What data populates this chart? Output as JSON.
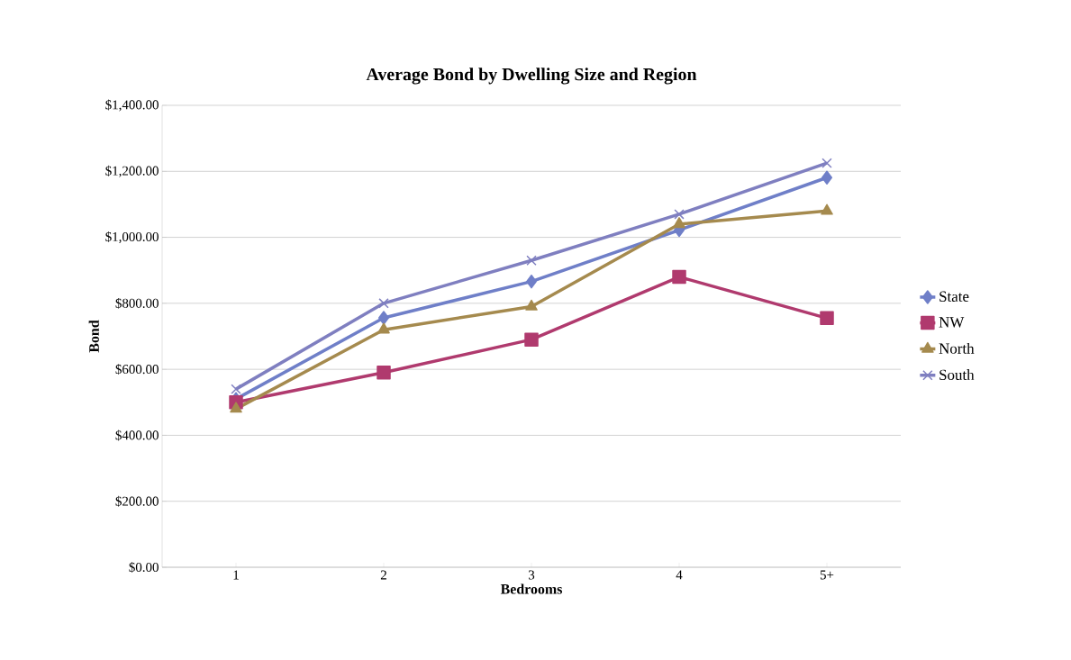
{
  "chart_data": {
    "type": "line",
    "title": "Average Bond by Dwelling Size and Region",
    "xlabel": "Bedrooms",
    "ylabel": "Bond",
    "categories": [
      "1",
      "2",
      "3",
      "4",
      "5+"
    ],
    "series": [
      {
        "name": "State",
        "color": "#6f7fc8",
        "marker": "diamond",
        "values": [
          510,
          756,
          866,
          1022,
          1181
        ]
      },
      {
        "name": "NW",
        "color": "#b03a6e",
        "marker": "square",
        "values": [
          500,
          590,
          690,
          880,
          755
        ]
      },
      {
        "name": "North",
        "color": "#a58a4e",
        "marker": "triangle",
        "values": [
          480,
          720,
          790,
          1040,
          1080
        ]
      },
      {
        "name": "South",
        "color": "#7f7fc0",
        "marker": "cross",
        "values": [
          540,
          800,
          930,
          1070,
          1225
        ]
      }
    ],
    "ylim": [
      0,
      1400
    ],
    "yticks": [
      {
        "value": 0,
        "label": "$0.00"
      },
      {
        "value": 200,
        "label": "$200.00"
      },
      {
        "value": 400,
        "label": "$400.00"
      },
      {
        "value": 600,
        "label": "$600.00"
      },
      {
        "value": 800,
        "label": "$800.00"
      },
      {
        "value": 1000,
        "label": "$1,000.00"
      },
      {
        "value": 1200,
        "label": "$1,200.00"
      },
      {
        "value": 1400,
        "label": "$1,400.00"
      }
    ],
    "grid": "y",
    "legend": "right"
  }
}
